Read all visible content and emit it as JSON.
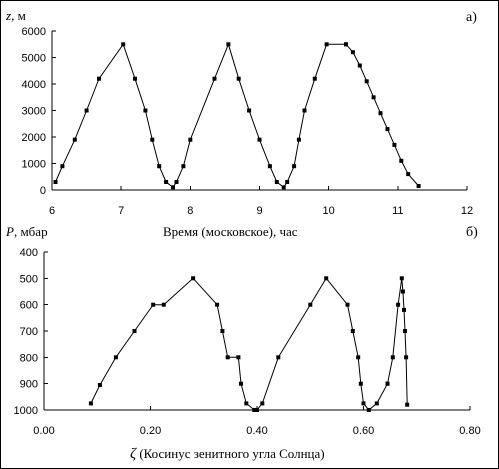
{
  "chart_data": [
    {
      "type": "line",
      "panel_label": "а)",
      "ylabel_symbol": "z",
      "ylabel_unit": ", м",
      "xlabel": "Время  (московское), час",
      "xlim": [
        6,
        12
      ],
      "ylim": [
        0,
        6000
      ],
      "xticks": [
        "6",
        "7",
        "8",
        "9",
        "10",
        "11",
        "12"
      ],
      "yticks": [
        "0",
        "1000",
        "2000",
        "3000",
        "4000",
        "5000",
        "6000"
      ],
      "series": [
        {
          "x": [
            6.05,
            6.15,
            6.33,
            6.5,
            6.68,
            7.03,
            7.2,
            7.35,
            7.45,
            7.55,
            7.65,
            7.75,
            7.8,
            7.9,
            8.0,
            8.35,
            8.55,
            8.7,
            8.85,
            9.0,
            9.15,
            9.25,
            9.35,
            9.4,
            9.5,
            9.57,
            9.65,
            9.8,
            9.97,
            10.25
          ],
          "y": [
            300,
            900,
            1900,
            3000,
            4200,
            5500,
            4200,
            3000,
            1900,
            900,
            300,
            100,
            300,
            900,
            1900,
            4200,
            5500,
            4200,
            3000,
            1900,
            900,
            300,
            100,
            300,
            900,
            1900,
            3000,
            4200,
            5500,
            5500
          ]
        },
        {
          "x": [
            10.25,
            10.35,
            10.45,
            10.55,
            10.65,
            10.75,
            10.85,
            10.95,
            11.05,
            11.15,
            11.3
          ],
          "y": [
            5500,
            5200,
            4700,
            4100,
            3500,
            2900,
            2300,
            1700,
            1100,
            600,
            150
          ]
        }
      ]
    },
    {
      "type": "line",
      "panel_label": "б)",
      "ylabel_symbol": "P",
      "ylabel_unit": ", мбар",
      "xlabel_symbol": "ζ",
      "xlabel": " (Косинус зенитного угла Солнца)",
      "xlim": [
        0,
        0.8
      ],
      "ylim": [
        1000,
        400
      ],
      "xticks": [
        "0.00",
        "0.20",
        "0.40",
        "0.60",
        "0.80"
      ],
      "yticks": [
        "400",
        "500",
        "600",
        "700",
        "800",
        "900",
        "1000"
      ],
      "series": [
        {
          "x": [
            0.088,
            0.105,
            0.135,
            0.17,
            0.205,
            0.225,
            0.28,
            0.325,
            0.335,
            0.345,
            0.365,
            0.37,
            0.38,
            0.395,
            0.4,
            0.41,
            0.44,
            0.5,
            0.53,
            0.57,
            0.58,
            0.59,
            0.595,
            0.6,
            0.61,
            0.625,
            0.645
          ],
          "y": [
            975,
            905,
            800,
            700,
            600,
            600,
            500,
            600,
            700,
            800,
            800,
            900,
            975,
            1000,
            1000,
            975,
            800,
            600,
            500,
            600,
            700,
            800,
            900,
            975,
            1000,
            975,
            900
          ]
        },
        {
          "x": [
            0.645,
            0.655,
            0.665,
            0.672,
            0.674,
            0.676,
            0.678,
            0.68,
            0.682
          ],
          "y": [
            900,
            800,
            600,
            500,
            550,
            620,
            700,
            800,
            980
          ]
        }
      ]
    }
  ]
}
